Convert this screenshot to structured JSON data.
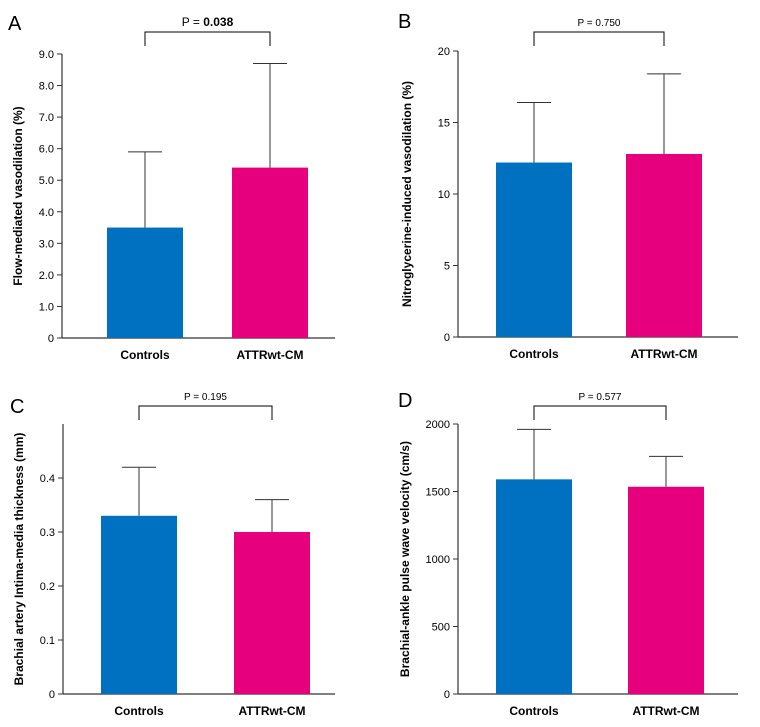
{
  "colors": {
    "controls": "#0070C0",
    "attr": "#E6007E",
    "axis": "#333333"
  },
  "chart_data": [
    {
      "panel": "A",
      "type": "bar",
      "ylabel": "Flow-mediated vasodilation (%)",
      "categories": [
        "Controls",
        "ATTRwt-CM"
      ],
      "values": [
        3.5,
        5.4
      ],
      "error_upper": [
        5.9,
        8.7
      ],
      "ylim": [
        0,
        9.0
      ],
      "yticks": [
        0,
        1.0,
        2.0,
        3.0,
        4.0,
        5.0,
        6.0,
        7.0,
        8.0,
        9.0
      ],
      "ytick_labels": [
        "0",
        "1.0",
        "2.0",
        "3.0",
        "4.0",
        "5.0",
        "6.0",
        "7.0",
        "8.0",
        "9.0"
      ],
      "p_prefix": "P = ",
      "p_value": "0.038",
      "p_bold": true
    },
    {
      "panel": "B",
      "type": "bar",
      "ylabel": "Nitroglycerine-induced vasodilation (%)",
      "categories": [
        "Controls",
        "ATTRwt-CM"
      ],
      "values": [
        12.2,
        12.8
      ],
      "error_upper": [
        16.4,
        18.4
      ],
      "ylim": [
        0,
        20
      ],
      "yticks": [
        0,
        5,
        10,
        15,
        20
      ],
      "ytick_labels": [
        "0",
        "5",
        "10",
        "15",
        "20"
      ],
      "p_prefix": "P = ",
      "p_value": "0.750",
      "p_bold": false
    },
    {
      "panel": "C",
      "type": "bar",
      "ylabel": "Brachial artery Intima-media thickness (mm)",
      "categories": [
        "Controls",
        "ATTRwt-CM"
      ],
      "values": [
        0.33,
        0.3
      ],
      "error_upper": [
        0.42,
        0.36
      ],
      "ylim": [
        0,
        0.5
      ],
      "yticks": [
        0,
        0.1,
        0.2,
        0.3,
        0.4
      ],
      "ytick_labels": [
        "0",
        "0.1",
        "0.2",
        "0.3",
        "0.4"
      ],
      "p_prefix": "P = ",
      "p_value": "0.195",
      "p_bold": false
    },
    {
      "panel": "D",
      "type": "bar",
      "ylabel": "Brachial-ankle pulse wave velocity (cm/s)",
      "categories": [
        "Controls",
        "ATTRwt-CM"
      ],
      "values": [
        1590,
        1535
      ],
      "error_upper": [
        1960,
        1760
      ],
      "ylim": [
        0,
        2000
      ],
      "yticks": [
        0,
        500,
        1000,
        1500,
        2000
      ],
      "ytick_labels": [
        "0",
        "500",
        "1000",
        "1500",
        "2000"
      ],
      "p_prefix": "P = ",
      "p_value": "0.577",
      "p_bold": false
    }
  ]
}
